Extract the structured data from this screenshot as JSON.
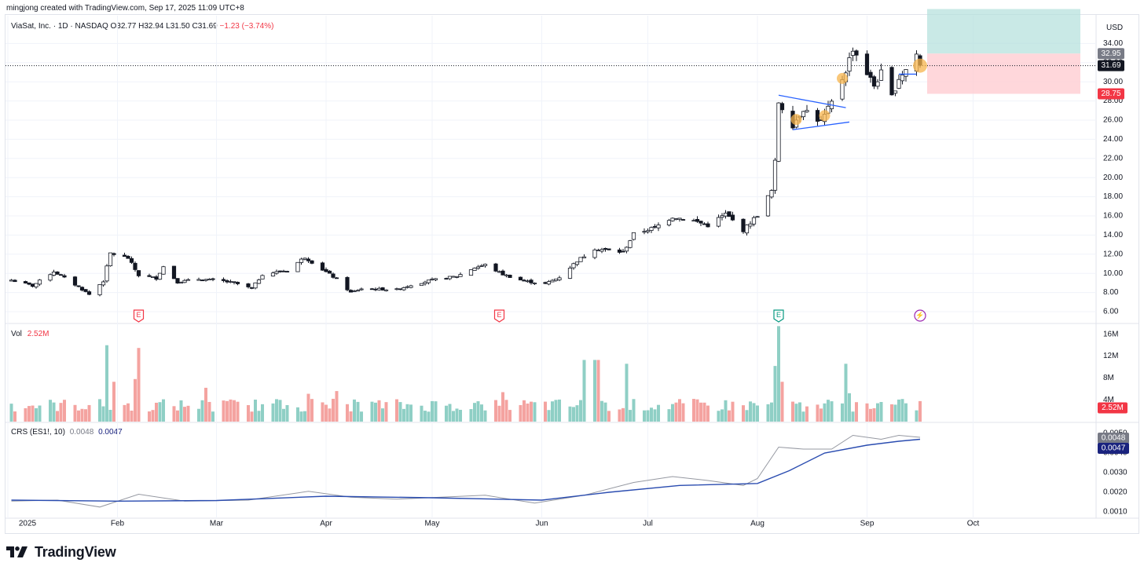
{
  "credit": "mingjong created with TradingView.com, Sep 17, 2025 11:09 UTC+8",
  "symbol": {
    "name": "ViaSat, Inc. · 1D · NASDAQ",
    "ohlc": "O32.77 H32.94 L31.50 C31.69",
    "change": "−1.23 (−3.74%)"
  },
  "currency": "USD",
  "brand": {
    "name": "TradingView",
    "icon": "tradingview-logo-icon"
  },
  "colors": {
    "up": "#26a69a",
    "down": "#ef5350",
    "candle_up_body": "#ffffff",
    "candle_down_body": "#131722",
    "trend": "#2962ff",
    "crs_raw": "#9598a1",
    "crs_ma": "#2a4cb0",
    "target_zone": "#b2dfdb",
    "stop_zone": "#ffcdd2",
    "highlight": "#f7b44c"
  },
  "x_axis": {
    "labels": [
      "2025",
      "Feb",
      "Mar",
      "Apr",
      "May",
      "Jun",
      "Jul",
      "Aug",
      "Sep",
      "Oct"
    ]
  },
  "events": [
    {
      "label": "E",
      "kind": "earnings",
      "color": "#f23645",
      "date": "2025-02-07"
    },
    {
      "label": "E",
      "kind": "earnings",
      "color": "#f23645",
      "date": "2025-05-20"
    },
    {
      "label": "E",
      "kind": "earnings",
      "color": "#089981",
      "date": "2025-08-07"
    },
    {
      "label": "⚡",
      "kind": "dividend-split",
      "color": "#9c27b0",
      "date": "2025-09-16"
    }
  ],
  "chart_data": [
    {
      "type": "candlestick",
      "panel": "price",
      "ylim": [
        5,
        36
      ],
      "y_ticks": [
        "34.00",
        "32.00",
        "30.00",
        "28.00",
        "26.00",
        "24.00",
        "22.00",
        "20.00",
        "18.00",
        "16.00",
        "14.00",
        "12.00",
        "10.00",
        "8.00",
        "6.00"
      ],
      "price_labels": {
        "last": "31.69",
        "target": "32.95",
        "stop": "28.75"
      },
      "risk_reward": {
        "entry": 32.95,
        "target": 37.6,
        "stop": 28.75
      },
      "trendlines": [
        {
          "from": [
            "2025-08-07",
            28.6
          ],
          "to": [
            "2025-08-26",
            27.3
          ]
        },
        {
          "from": [
            "2025-08-11",
            25.0
          ],
          "to": [
            "2025-08-27",
            25.8
          ]
        },
        {
          "from": [
            "2025-09-10",
            30.8
          ],
          "to": [
            "2025-09-15",
            30.8
          ]
        }
      ],
      "highlights": [
        "2025-08-12",
        "2025-08-20",
        "2025-08-25",
        "2025-09-16"
      ],
      "ohlc_path": [
        [
          "2025-01-02",
          9.3
        ],
        [
          "2025-01-08",
          8.7
        ],
        [
          "2025-01-14",
          10.2
        ],
        [
          "2025-01-21",
          8.6
        ],
        [
          "2025-01-24",
          7.8
        ],
        [
          "2025-01-28",
          9.2
        ],
        [
          "2025-01-30",
          12.1
        ],
        [
          "2025-02-04",
          11.6
        ],
        [
          "2025-02-07",
          9.8
        ],
        [
          "2025-02-12",
          9.5
        ],
        [
          "2025-02-14",
          10.7
        ],
        [
          "2025-02-18",
          9.1
        ],
        [
          "2025-02-24",
          9.4
        ],
        [
          "2025-03-03",
          9.2
        ],
        [
          "2025-03-07",
          8.9
        ],
        [
          "2025-03-11",
          8.4
        ],
        [
          "2025-03-14",
          9.9
        ],
        [
          "2025-03-21",
          10.3
        ],
        [
          "2025-03-26",
          11.7
        ],
        [
          "2025-03-31",
          10.4
        ],
        [
          "2025-04-04",
          9.4
        ],
        [
          "2025-04-08",
          8.0
        ],
        [
          "2025-04-11",
          8.4
        ],
        [
          "2025-04-21",
          8.3
        ],
        [
          "2025-04-25",
          8.8
        ],
        [
          "2025-05-01",
          9.3
        ],
        [
          "2025-05-08",
          9.7
        ],
        [
          "2025-05-13",
          10.6
        ],
        [
          "2025-05-16",
          10.9
        ],
        [
          "2025-05-21",
          9.9
        ],
        [
          "2025-05-27",
          9.2
        ],
        [
          "2025-06-02",
          8.9
        ],
        [
          "2025-06-06",
          9.6
        ],
        [
          "2025-06-11",
          11.3
        ],
        [
          "2025-06-16",
          12.6
        ],
        [
          "2025-06-24",
          12.2
        ],
        [
          "2025-06-27",
          14.1
        ],
        [
          "2025-07-03",
          14.8
        ],
        [
          "2025-07-08",
          15.9
        ],
        [
          "2025-07-14",
          15.5
        ],
        [
          "2025-07-18",
          15.0
        ],
        [
          "2025-07-23",
          16.2
        ],
        [
          "2025-07-28",
          14.5
        ],
        [
          "2025-08-01",
          16.1
        ],
        [
          "2025-08-05",
          18.6
        ],
        [
          "2025-08-06",
          21.6
        ],
        [
          "2025-08-07",
          27.9
        ],
        [
          "2025-08-11",
          25.5
        ],
        [
          "2025-08-14",
          27.2
        ],
        [
          "2025-08-19",
          25.8
        ],
        [
          "2025-08-22",
          27.8
        ],
        [
          "2025-08-26",
          31.2
        ],
        [
          "2025-08-28",
          33.5
        ],
        [
          "2025-09-03",
          29.6
        ],
        [
          "2025-09-05",
          30.9
        ],
        [
          "2025-09-08",
          28.4
        ],
        [
          "2025-09-10",
          30.4
        ],
        [
          "2025-09-12",
          31.3
        ],
        [
          "2025-09-15",
          32.9
        ],
        [
          "2025-09-16",
          31.69
        ]
      ]
    },
    {
      "type": "bar",
      "panel": "volume",
      "name": "Vol",
      "last_value": "2.52M",
      "ylim": [
        0,
        18
      ],
      "y_ticks": [
        "16M",
        "12M",
        "8M",
        "4M"
      ],
      "unit": "M",
      "spikes": [
        [
          "2025-01-29",
          14
        ],
        [
          "2025-01-31",
          7.3
        ],
        [
          "2025-02-06",
          7.8
        ],
        [
          "2025-02-07",
          13.5
        ],
        [
          "2025-02-26",
          6.2
        ],
        [
          "2025-03-27",
          5.1
        ],
        [
          "2025-04-04",
          5.6
        ],
        [
          "2025-05-21",
          5.4
        ],
        [
          "2025-06-13",
          11.3
        ],
        [
          "2025-06-16",
          11.3
        ],
        [
          "2025-06-17",
          11.3
        ],
        [
          "2025-06-25",
          10.6
        ],
        [
          "2025-08-06",
          10.2
        ],
        [
          "2025-08-07",
          17.5
        ],
        [
          "2025-08-08",
          7.3
        ],
        [
          "2025-08-26",
          10.6
        ],
        [
          "2025-08-27",
          5.2
        ]
      ],
      "baseline_range": [
        1.8,
        4.2
      ]
    },
    {
      "type": "line",
      "panel": "crs",
      "title": "CRS (ES1!, 10)",
      "values_label": [
        "0.0048",
        "0.0047"
      ],
      "ylim": [
        0.0008,
        0.0052
      ],
      "y_ticks": [
        "0.0050",
        "0.0040",
        "0.0030",
        "0.0020",
        "0.0010"
      ],
      "series": [
        {
          "name": "CRS",
          "points": [
            [
              "2025-01-02",
              0.00155
            ],
            [
              "2025-01-15",
              0.0016
            ],
            [
              "2025-01-27",
              0.00125
            ],
            [
              "2025-02-07",
              0.0019
            ],
            [
              "2025-02-20",
              0.00155
            ],
            [
              "2025-03-10",
              0.0016
            ],
            [
              "2025-03-27",
              0.00205
            ],
            [
              "2025-04-08",
              0.00175
            ],
            [
              "2025-04-21",
              0.00165
            ],
            [
              "2025-05-16",
              0.00185
            ],
            [
              "2025-05-30",
              0.00145
            ],
            [
              "2025-06-13",
              0.00185
            ],
            [
              "2025-06-27",
              0.0025
            ],
            [
              "2025-07-08",
              0.0028
            ],
            [
              "2025-07-18",
              0.0026
            ],
            [
              "2025-07-28",
              0.00235
            ],
            [
              "2025-08-01",
              0.0027
            ],
            [
              "2025-08-07",
              0.0043
            ],
            [
              "2025-08-14",
              0.0042
            ],
            [
              "2025-08-22",
              0.0042
            ],
            [
              "2025-08-28",
              0.0049
            ],
            [
              "2025-09-05",
              0.0047
            ],
            [
              "2025-09-10",
              0.0049
            ],
            [
              "2025-09-16",
              0.0048
            ]
          ]
        },
        {
          "name": "MA",
          "points": [
            [
              "2025-01-02",
              0.0016
            ],
            [
              "2025-02-01",
              0.00155
            ],
            [
              "2025-03-01",
              0.00158
            ],
            [
              "2025-04-01",
              0.0018
            ],
            [
              "2025-05-01",
              0.00172
            ],
            [
              "2025-06-01",
              0.0016
            ],
            [
              "2025-06-20",
              0.002
            ],
            [
              "2025-07-10",
              0.00235
            ],
            [
              "2025-08-01",
              0.00245
            ],
            [
              "2025-08-10",
              0.0031
            ],
            [
              "2025-08-20",
              0.004
            ],
            [
              "2025-09-01",
              0.0044
            ],
            [
              "2025-09-10",
              0.0046
            ],
            [
              "2025-09-16",
              0.0047
            ]
          ]
        }
      ],
      "price_labels": {
        "raw": "0.0048",
        "ma": "0.0047"
      }
    }
  ]
}
